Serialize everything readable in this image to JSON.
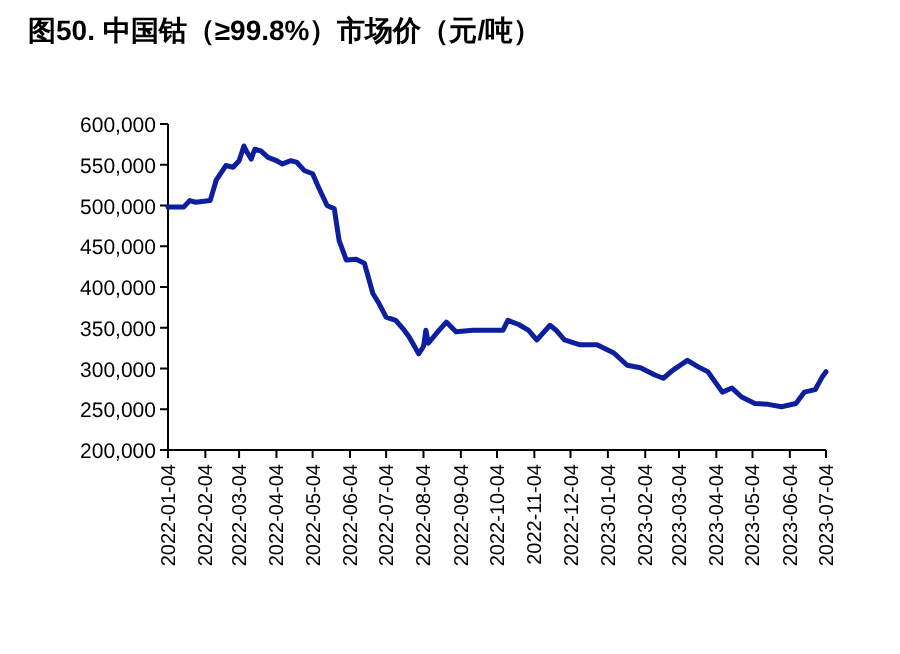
{
  "chart_data": {
    "type": "line",
    "title": "图50. 中国钴（≥99.8%）市场价（元/吨）",
    "x": [
      "2022-01-04",
      "2022-01-17",
      "2022-01-22",
      "2022-01-27",
      "2022-02-08",
      "2022-02-13",
      "2022-02-21",
      "2022-02-27",
      "2022-03-04",
      "2022-03-08",
      "2022-03-10",
      "2022-03-14",
      "2022-03-17",
      "2022-03-22",
      "2022-03-28",
      "2022-04-04",
      "2022-04-09",
      "2022-04-16",
      "2022-04-21",
      "2022-04-27",
      "2022-05-04",
      "2022-05-09",
      "2022-05-16",
      "2022-05-22",
      "2022-05-26",
      "2022-06-01",
      "2022-06-09",
      "2022-06-16",
      "2022-06-23",
      "2022-06-28",
      "2022-07-04",
      "2022-07-12",
      "2022-07-19",
      "2022-07-23",
      "2022-07-31",
      "2022-08-04",
      "2022-08-06",
      "2022-08-08",
      "2022-08-17",
      "2022-08-23",
      "2022-08-31",
      "2022-09-14",
      "2022-10-09",
      "2022-10-13",
      "2022-10-22",
      "2022-10-30",
      "2022-11-06",
      "2022-11-17",
      "2022-11-22",
      "2022-11-29",
      "2022-12-12",
      "2022-12-26",
      "2023-01-09",
      "2023-01-20",
      "2023-01-31",
      "2023-02-12",
      "2023-02-19",
      "2023-02-27",
      "2023-03-11",
      "2023-03-20",
      "2023-03-28",
      "2023-04-09",
      "2023-04-17",
      "2023-04-25",
      "2023-05-06",
      "2023-05-17",
      "2023-05-28",
      "2023-06-09",
      "2023-06-16",
      "2023-06-25",
      "2023-07-01",
      "2023-07-04"
    ],
    "series": [
      {
        "color": "#0d1f9e",
        "values": [
          498000,
          498000,
          506000,
          504000,
          506000,
          531000,
          549000,
          547000,
          555000,
          573000,
          567000,
          557000,
          569000,
          567000,
          559000,
          555000,
          551000,
          555000,
          553000,
          543000,
          539000,
          522000,
          500000,
          496000,
          457000,
          433000,
          434000,
          429000,
          392000,
          380000,
          363000,
          359000,
          347000,
          339000,
          318000,
          327000,
          347000,
          331000,
          347000,
          357000,
          345000,
          347000,
          347000,
          359000,
          354000,
          347000,
          335000,
          353000,
          347000,
          335000,
          329000,
          329000,
          319000,
          304000,
          301000,
          292000,
          288000,
          298000,
          310000,
          302000,
          296000,
          271000,
          276000,
          265000,
          257000,
          256000,
          253000,
          257000,
          271000,
          274000,
          290000,
          296000
        ]
      }
    ],
    "xlim": [
      "2022-01-04",
      "2023-07-04"
    ],
    "xticks": [
      "2022-01-04",
      "2022-02-04",
      "2022-03-04",
      "2022-04-04",
      "2022-05-04",
      "2022-06-04",
      "2022-07-04",
      "2022-08-04",
      "2022-09-04",
      "2022-10-04",
      "2022-11-04",
      "2022-12-04",
      "2023-01-04",
      "2023-02-04",
      "2023-03-04",
      "2023-04-04",
      "2023-05-04",
      "2023-06-04",
      "2023-07-04"
    ],
    "ylim": [
      200000,
      600000
    ],
    "yticks": [
      {
        "value": 200000,
        "label": "200,000"
      },
      {
        "value": 250000,
        "label": "250,000"
      },
      {
        "value": 300000,
        "label": "300,000"
      },
      {
        "value": 350000,
        "label": "350,000"
      },
      {
        "value": 400000,
        "label": "400,000"
      },
      {
        "value": 450000,
        "label": "450,000"
      },
      {
        "value": 500000,
        "label": "500,000"
      },
      {
        "value": 550000,
        "label": "550,000"
      },
      {
        "value": 600000,
        "label": "600,000"
      }
    ],
    "grid": false,
    "marker": "none",
    "line_style": "solid"
  }
}
